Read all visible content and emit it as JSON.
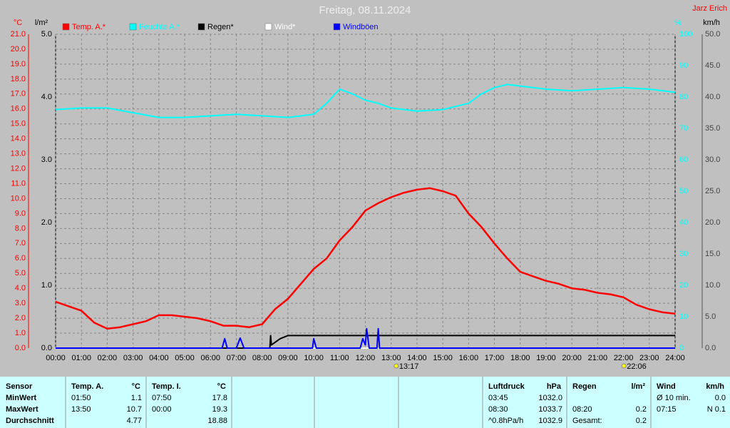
{
  "chart_data": {
    "type": "line",
    "title": "Freitag, 08.11.2024",
    "author": "Jarz Erich",
    "axis_units": {
      "y": "°C",
      "y2": "l/m²",
      "y3": "%",
      "y4": "km/h"
    },
    "xlim": [
      0,
      24
    ],
    "xticks": [
      {
        "value": 0,
        "label": "00:00"
      },
      {
        "value": 1,
        "label": "01:00"
      },
      {
        "value": 2,
        "label": "02:00"
      },
      {
        "value": 3,
        "label": "03:00"
      },
      {
        "value": 4,
        "label": "04:00"
      },
      {
        "value": 5,
        "label": "05:00"
      },
      {
        "value": 6,
        "label": "06:00"
      },
      {
        "value": 7,
        "label": "07:00"
      },
      {
        "value": 8,
        "label": "08:00"
      },
      {
        "value": 9,
        "label": "09:00"
      },
      {
        "value": 10,
        "label": "10:00"
      },
      {
        "value": 11,
        "label": "11:00"
      },
      {
        "value": 12,
        "label": "12:00"
      },
      {
        "value": 13,
        "label": "13:00"
      },
      {
        "value": 14,
        "label": "14:00"
      },
      {
        "value": 15,
        "label": "15:00"
      },
      {
        "value": 16,
        "label": "16:00"
      },
      {
        "value": 17,
        "label": "17:00"
      },
      {
        "value": 18,
        "label": "18:00"
      },
      {
        "value": 19,
        "label": "19:00"
      },
      {
        "value": 20,
        "label": "20:00"
      },
      {
        "value": 21,
        "label": "21:00"
      },
      {
        "value": 22,
        "label": "22:00"
      },
      {
        "value": 23,
        "label": "23:00"
      },
      {
        "value": 24,
        "label": "24:00"
      }
    ],
    "ylim": [
      0,
      21
    ],
    "yticks": [
      {
        "value": 0,
        "label": "0.0"
      },
      {
        "value": 1,
        "label": "1.0"
      },
      {
        "value": 2,
        "label": "2.0"
      },
      {
        "value": 3,
        "label": "3.0"
      },
      {
        "value": 4,
        "label": "4.0"
      },
      {
        "value": 5,
        "label": "5.0"
      },
      {
        "value": 6,
        "label": "6.0"
      },
      {
        "value": 7,
        "label": "7.0"
      },
      {
        "value": 8,
        "label": "8.0"
      },
      {
        "value": 9,
        "label": "9.0"
      },
      {
        "value": 10,
        "label": "10.0"
      },
      {
        "value": 11,
        "label": "11.0"
      },
      {
        "value": 12,
        "label": "12.0"
      },
      {
        "value": 13,
        "label": "13.0"
      },
      {
        "value": 14,
        "label": "14.0"
      },
      {
        "value": 15,
        "label": "15.0"
      },
      {
        "value": 16,
        "label": "16.0"
      },
      {
        "value": 17,
        "label": "17.0"
      },
      {
        "value": 18,
        "label": "18.0"
      },
      {
        "value": 19,
        "label": "19.0"
      },
      {
        "value": 20,
        "label": "20.0"
      },
      {
        "value": 21,
        "label": "21.0"
      }
    ],
    "y2lim": [
      0,
      5
    ],
    "y2ticks": [
      {
        "value": 0,
        "label": "0.0"
      },
      {
        "value": 1,
        "label": "1.0"
      },
      {
        "value": 2,
        "label": "2.0"
      },
      {
        "value": 3,
        "label": "3.0"
      },
      {
        "value": 4,
        "label": "4.0"
      },
      {
        "value": 5,
        "label": "5.0"
      }
    ],
    "y3lim": [
      0,
      100
    ],
    "y3ticks": [
      0,
      10,
      20,
      30,
      40,
      50,
      60,
      70,
      80,
      90,
      100
    ],
    "y4lim": [
      0,
      50
    ],
    "y4ticks": [
      {
        "value": 0,
        "label": "0.0"
      },
      {
        "value": 5,
        "label": "5.0"
      },
      {
        "value": 10,
        "label": "10.0"
      },
      {
        "value": 15,
        "label": "15.0"
      },
      {
        "value": 20,
        "label": "20.0"
      },
      {
        "value": 25,
        "label": "25.0"
      },
      {
        "value": 30,
        "label": "30.0"
      },
      {
        "value": 35,
        "label": "35.0"
      },
      {
        "value": 40,
        "label": "40.0"
      },
      {
        "value": 45,
        "label": "45.0"
      },
      {
        "value": 50,
        "label": "50.0"
      }
    ],
    "grid": true,
    "series": [
      {
        "name": "Temp. A.*",
        "color": "#ff0000",
        "axis": "y",
        "x": [
          0,
          0.5,
          1,
          1.5,
          2,
          2.5,
          3,
          3.5,
          4,
          4.5,
          5,
          5.5,
          6,
          6.5,
          7,
          7.5,
          8,
          8.5,
          9,
          9.5,
          10,
          10.5,
          11,
          11.5,
          12,
          12.5,
          13,
          13.5,
          14,
          14.5,
          15,
          15.5,
          16,
          16.5,
          17,
          17.5,
          18,
          18.5,
          19,
          19.5,
          20,
          20.5,
          21,
          21.5,
          22,
          22.5,
          23,
          23.5,
          24
        ],
        "values": [
          3.1,
          2.8,
          2.5,
          1.7,
          1.3,
          1.4,
          1.6,
          1.8,
          2.2,
          2.2,
          2.1,
          2.0,
          1.8,
          1.5,
          1.5,
          1.4,
          1.6,
          2.6,
          3.3,
          4.3,
          5.3,
          6.0,
          7.2,
          8.1,
          9.2,
          9.7,
          10.1,
          10.4,
          10.6,
          10.7,
          10.5,
          10.2,
          9.0,
          8.1,
          7.0,
          6.0,
          5.1,
          4.8,
          4.5,
          4.3,
          4.0,
          3.9,
          3.7,
          3.6,
          3.4,
          2.9,
          2.6,
          2.4,
          2.3
        ]
      },
      {
        "name": "Feuchte A.*",
        "color": "#00ffff",
        "axis": "y3",
        "x": [
          0,
          1,
          2,
          3,
          4,
          5,
          6,
          7,
          8,
          9,
          10,
          10.5,
          11,
          11.5,
          12,
          12.5,
          13,
          14,
          15,
          16,
          16.5,
          17,
          17.5,
          18,
          19,
          20,
          21,
          22,
          23,
          24
        ],
        "values": [
          76,
          76.5,
          76.5,
          75,
          73.5,
          73.5,
          74,
          74.5,
          74,
          73.5,
          74.5,
          78,
          82.5,
          81,
          79,
          78,
          76.5,
          75.5,
          76,
          78,
          81,
          83,
          84,
          83.5,
          82.5,
          82,
          82.5,
          83,
          82.5,
          81.5
        ]
      },
      {
        "name": "Regen*",
        "color": "#000000",
        "axis": "y2",
        "x": [
          0,
          8.3,
          8.33,
          8.36,
          8.7,
          9,
          24
        ],
        "values": [
          0,
          0,
          0.2,
          0.05,
          0.15,
          0.2,
          0.2
        ]
      },
      {
        "name": "Wind*",
        "color": "#ffffff",
        "axis": "y4",
        "x": [
          0,
          24
        ],
        "values": [
          0,
          0
        ]
      },
      {
        "name": "Windböen",
        "color": "#0000ff",
        "axis": "y4",
        "x": [
          0,
          6.45,
          6.55,
          6.65,
          7.0,
          7.15,
          7.3,
          9.95,
          10.0,
          10.1,
          11.8,
          11.9,
          12.0,
          12.05,
          12.15,
          12.45,
          12.5,
          12.55,
          24
        ],
        "values": [
          0,
          0,
          1.5,
          0,
          0,
          1.6,
          0,
          0,
          1.5,
          0,
          0,
          1.5,
          0.5,
          3.1,
          0,
          0,
          3.1,
          0,
          0
        ]
      }
    ],
    "annotations": [
      {
        "text": "13:17",
        "x": 13.28
      },
      {
        "text": "22:06",
        "x": 22.1
      }
    ]
  },
  "stats": {
    "row_labels": {
      "header": "Sensor",
      "min": "MinWert",
      "max": "MaxWert",
      "avg": "Durchschnitt"
    },
    "groups": [
      {
        "name": "Temp. A.",
        "unit": "°C",
        "min_time": "01:50",
        "min": "1.1",
        "max_time": "13:50",
        "max": "10.7",
        "avg": "4.77"
      },
      {
        "name": "Temp. I.",
        "unit": "°C",
        "min_time": "07:50",
        "min": "17.8",
        "max_time": "00:00",
        "max": "19.3",
        "avg": "18.88"
      },
      {
        "name": "Luftdruck",
        "unit": "hPa",
        "min_time": "03:45",
        "min": "1032.0",
        "max_time": "08:30",
        "max": "1033.7",
        "avg_time": "^0.8hPa/h",
        "avg": "1032.9"
      },
      {
        "name": "Regen",
        "unit": "l/m²",
        "max_time": "08:20",
        "max": "0.2",
        "avg_time": "Gesamt:",
        "avg": "0.2"
      },
      {
        "name": "Wind",
        "unit": "km/h",
        "min_time": "Ø 10 min.",
        "min": "0.0",
        "max_time": "07:15",
        "max": "N 0.1"
      }
    ]
  }
}
